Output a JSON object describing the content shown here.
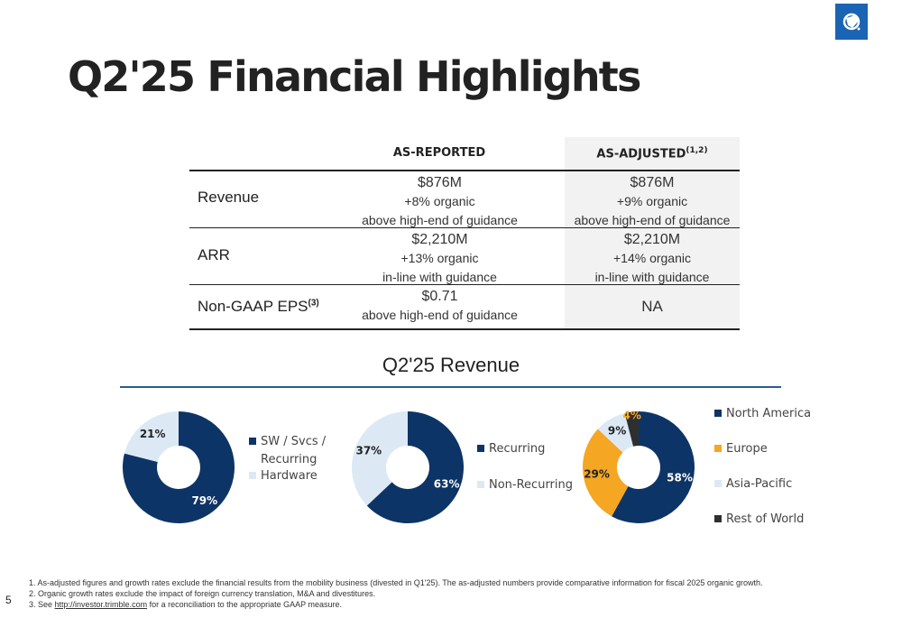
{
  "title": "Q2'25 Financial Highlights",
  "table": {
    "headers": {
      "as_reported": "AS-REPORTED",
      "as_adjusted": "AS-ADJUSTED",
      "as_adjusted_sup": "(1,2)"
    },
    "rows": [
      {
        "label": "Revenue",
        "label_sup": "",
        "reported": [
          "$876M",
          "+8% organic",
          "above high-end of guidance"
        ],
        "adjusted": [
          "$876M",
          "+9% organic",
          "above high-end of guidance"
        ]
      },
      {
        "label": "ARR",
        "label_sup": "",
        "reported": [
          "$2,210M",
          "+13% organic",
          "in-line with guidance"
        ],
        "adjusted": [
          "$2,210M",
          "+14% organic",
          "in-line with guidance"
        ]
      },
      {
        "label": "Non-GAAP EPS",
        "label_sup": "(3)",
        "reported": [
          "$0.71",
          "above high-end of guidance"
        ],
        "adjusted": [
          "NA"
        ]
      }
    ]
  },
  "section_title": "Q2'25 Revenue",
  "chart_data": [
    {
      "type": "pie",
      "categories": [
        "SW / Svcs / Recurring",
        "Hardware"
      ],
      "values": [
        79,
        21
      ],
      "labels": [
        "79%",
        "21%"
      ],
      "colors": [
        "#0d3466",
        "#dce9f5"
      ],
      "legend": [
        "SW / Svcs /",
        "Recurring",
        "Hardware"
      ]
    },
    {
      "type": "pie",
      "categories": [
        "Recurring",
        "Non-Recurring"
      ],
      "values": [
        63,
        37
      ],
      "labels": [
        "63%",
        "37%"
      ],
      "colors": [
        "#0d3466",
        "#dce9f5"
      ],
      "legend": [
        "Recurring",
        "Non-Recurring"
      ]
    },
    {
      "type": "pie",
      "categories": [
        "North America",
        "Europe",
        "Asia-Pacific",
        "Rest of World"
      ],
      "values": [
        58,
        29,
        9,
        4
      ],
      "labels": [
        "58%",
        "29%",
        "9%",
        "4%"
      ],
      "colors": [
        "#0d3466",
        "#f5a623",
        "#dce9f5",
        "#2f2f2f"
      ],
      "legend": [
        "North America",
        "Europe",
        "Asia-Pacific",
        "Rest of World"
      ]
    }
  ],
  "footnotes": {
    "n1": "1.  As-adjusted figures and growth rates exclude the financial results from the mobility business (divested in Q1'25). The as-adjusted numbers provide comparative information for fiscal 2025 organic growth.",
    "n2": "2.  Organic growth rates exclude the impact of foreign currency translation, M&A and divestitures.",
    "n3_pre": "3.  See ",
    "n3_link": "http://investor.trimble.com",
    "n3_post": " for a reconciliation to the appropriate GAAP measure."
  },
  "page_number": "5",
  "logo_icon": "trimble-globe-icon"
}
